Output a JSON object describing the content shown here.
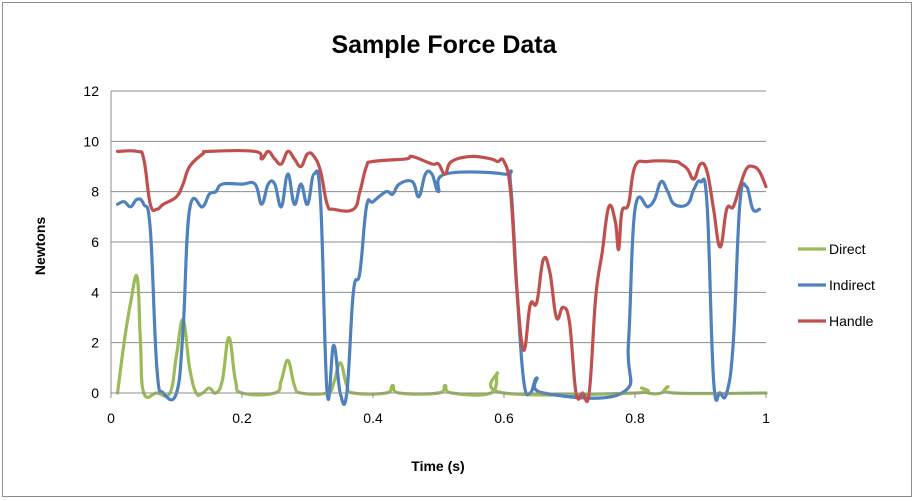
{
  "chart_data": {
    "type": "line",
    "title": "Sample Force Data",
    "xlabel": "Time (s)",
    "ylabel": "Newtons",
    "xlim": [
      0,
      1
    ],
    "ylim": [
      0,
      12
    ],
    "xticks": [
      0,
      0.2,
      0.4,
      0.6,
      0.8,
      1
    ],
    "xtick_labels": [
      "0",
      "0.2",
      "0.4",
      "0.6",
      "0.8",
      "1"
    ],
    "yticks": [
      0,
      2,
      4,
      6,
      8,
      10,
      12
    ],
    "ytick_labels": [
      "0",
      "2",
      "4",
      "6",
      "8",
      "10",
      "12"
    ],
    "grid": "horizontal",
    "legend": "right",
    "series": [
      {
        "name": "Direct",
        "color": "#9bbb59",
        "points": [
          [
            0.01,
            0
          ],
          [
            0.02,
            2
          ],
          [
            0.03,
            3.6
          ],
          [
            0.04,
            4.6
          ],
          [
            0.045,
            2
          ],
          [
            0.05,
            0
          ],
          [
            0.07,
            0
          ],
          [
            0.09,
            0
          ],
          [
            0.1,
            1.5
          ],
          [
            0.11,
            2.9
          ],
          [
            0.12,
            1
          ],
          [
            0.13,
            0
          ],
          [
            0.14,
            0
          ],
          [
            0.15,
            0.2
          ],
          [
            0.16,
            0
          ],
          [
            0.17,
            0.5
          ],
          [
            0.18,
            2.2
          ],
          [
            0.19,
            0.5
          ],
          [
            0.2,
            0
          ],
          [
            0.25,
            0
          ],
          [
            0.26,
            0.5
          ],
          [
            0.27,
            1.3
          ],
          [
            0.28,
            0.3
          ],
          [
            0.29,
            0
          ],
          [
            0.33,
            0
          ],
          [
            0.34,
            0.4
          ],
          [
            0.35,
            1.2
          ],
          [
            0.36,
            0.3
          ],
          [
            0.37,
            0
          ],
          [
            0.42,
            0
          ],
          [
            0.43,
            0.3
          ],
          [
            0.44,
            0
          ],
          [
            0.5,
            0
          ],
          [
            0.51,
            0.3
          ],
          [
            0.52,
            0
          ],
          [
            0.58,
            0
          ],
          [
            0.59,
            0.8
          ],
          [
            0.6,
            0
          ],
          [
            0.8,
            0
          ],
          [
            0.81,
            0.2
          ],
          [
            0.82,
            0
          ],
          [
            0.84,
            0
          ],
          [
            0.85,
            0.25
          ],
          [
            0.86,
            0
          ],
          [
            1,
            0
          ]
        ]
      },
      {
        "name": "Indirect",
        "color": "#4f81bd",
        "points": [
          [
            0.01,
            7.5
          ],
          [
            0.02,
            7.6
          ],
          [
            0.03,
            7.4
          ],
          [
            0.04,
            7.7
          ],
          [
            0.05,
            7.5
          ],
          [
            0.06,
            6.5
          ],
          [
            0.07,
            1
          ],
          [
            0.08,
            0
          ],
          [
            0.1,
            0
          ],
          [
            0.11,
            2.5
          ],
          [
            0.12,
            7.3
          ],
          [
            0.14,
            7.4
          ],
          [
            0.15,
            7.9
          ],
          [
            0.16,
            8
          ],
          [
            0.17,
            8.3
          ],
          [
            0.2,
            8.3
          ],
          [
            0.22,
            8.3
          ],
          [
            0.23,
            7.5
          ],
          [
            0.24,
            8.3
          ],
          [
            0.25,
            8.3
          ],
          [
            0.26,
            7.4
          ],
          [
            0.27,
            8.7
          ],
          [
            0.28,
            7.5
          ],
          [
            0.29,
            8.3
          ],
          [
            0.3,
            7.5
          ],
          [
            0.31,
            8.7
          ],
          [
            0.32,
            7.6
          ],
          [
            0.33,
            0
          ],
          [
            0.34,
            1.9
          ],
          [
            0.35,
            0
          ],
          [
            0.36,
            0
          ],
          [
            0.37,
            4
          ],
          [
            0.38,
            4.8
          ],
          [
            0.39,
            7.4
          ],
          [
            0.4,
            7.6
          ],
          [
            0.42,
            8
          ],
          [
            0.43,
            7.9
          ],
          [
            0.44,
            8.3
          ],
          [
            0.46,
            8.4
          ],
          [
            0.47,
            7.8
          ],
          [
            0.48,
            8.7
          ],
          [
            0.49,
            8.7
          ],
          [
            0.5,
            8
          ],
          [
            0.51,
            8.7
          ],
          [
            0.6,
            8.7
          ],
          [
            0.61,
            8.3
          ],
          [
            0.62,
            4
          ],
          [
            0.63,
            0.5
          ],
          [
            0.64,
            0
          ],
          [
            0.65,
            0.6
          ],
          [
            0.66,
            0
          ],
          [
            0.78,
            0
          ],
          [
            0.79,
            2
          ],
          [
            0.8,
            7.3
          ],
          [
            0.82,
            7.4
          ],
          [
            0.83,
            7.7
          ],
          [
            0.84,
            8.4
          ],
          [
            0.85,
            8
          ],
          [
            0.86,
            7.5
          ],
          [
            0.88,
            7.5
          ],
          [
            0.89,
            8.1
          ],
          [
            0.9,
            8.4
          ],
          [
            0.91,
            7.5
          ],
          [
            0.92,
            0.5
          ],
          [
            0.93,
            0
          ],
          [
            0.94,
            0
          ],
          [
            0.95,
            2
          ],
          [
            0.96,
            7.5
          ],
          [
            0.97,
            8.2
          ],
          [
            0.98,
            7.3
          ],
          [
            0.99,
            7.3
          ]
        ]
      },
      {
        "name": "Handle",
        "color": "#c0504d",
        "points": [
          [
            0.01,
            9.6
          ],
          [
            0.04,
            9.6
          ],
          [
            0.05,
            9.3
          ],
          [
            0.06,
            7.5
          ],
          [
            0.07,
            7.3
          ],
          [
            0.08,
            7.5
          ],
          [
            0.1,
            7.8
          ],
          [
            0.11,
            8.3
          ],
          [
            0.12,
            9
          ],
          [
            0.14,
            9.5
          ],
          [
            0.15,
            9.6
          ],
          [
            0.22,
            9.6
          ],
          [
            0.23,
            9.3
          ],
          [
            0.24,
            9.6
          ],
          [
            0.25,
            9.3
          ],
          [
            0.26,
            9.1
          ],
          [
            0.27,
            9.6
          ],
          [
            0.28,
            9.3
          ],
          [
            0.29,
            9
          ],
          [
            0.3,
            9.5
          ],
          [
            0.31,
            9.4
          ],
          [
            0.32,
            8.8
          ],
          [
            0.33,
            7.5
          ],
          [
            0.34,
            7.3
          ],
          [
            0.37,
            7.3
          ],
          [
            0.38,
            8
          ],
          [
            0.39,
            9
          ],
          [
            0.4,
            9.2
          ],
          [
            0.45,
            9.3
          ],
          [
            0.46,
            9.4
          ],
          [
            0.49,
            9.1
          ],
          [
            0.5,
            9.1
          ],
          [
            0.51,
            8.7
          ],
          [
            0.52,
            9.2
          ],
          [
            0.55,
            9.4
          ],
          [
            0.58,
            9.3
          ],
          [
            0.59,
            9.2
          ],
          [
            0.6,
            9.2
          ],
          [
            0.61,
            8
          ],
          [
            0.62,
            4
          ],
          [
            0.63,
            1.7
          ],
          [
            0.64,
            3.5
          ],
          [
            0.65,
            3.6
          ],
          [
            0.66,
            5.3
          ],
          [
            0.67,
            4.8
          ],
          [
            0.68,
            3
          ],
          [
            0.69,
            3.4
          ],
          [
            0.7,
            2.8
          ],
          [
            0.71,
            0
          ],
          [
            0.72,
            0
          ],
          [
            0.73,
            0
          ],
          [
            0.74,
            3.8
          ],
          [
            0.75,
            5.6
          ],
          [
            0.76,
            7.4
          ],
          [
            0.77,
            6.8
          ],
          [
            0.775,
            5.7
          ],
          [
            0.78,
            7.2
          ],
          [
            0.79,
            7.5
          ],
          [
            0.8,
            9
          ],
          [
            0.82,
            9.2
          ],
          [
            0.86,
            9.2
          ],
          [
            0.87,
            9.1
          ],
          [
            0.88,
            8.9
          ],
          [
            0.89,
            8.5
          ],
          [
            0.9,
            9.1
          ],
          [
            0.91,
            8.8
          ],
          [
            0.92,
            7.3
          ],
          [
            0.93,
            5.8
          ],
          [
            0.94,
            7.3
          ],
          [
            0.95,
            7.4
          ],
          [
            0.96,
            8.2
          ],
          [
            0.97,
            8.9
          ],
          [
            0.98,
            9
          ],
          [
            0.99,
            8.8
          ],
          [
            1,
            8.2
          ]
        ]
      }
    ]
  }
}
